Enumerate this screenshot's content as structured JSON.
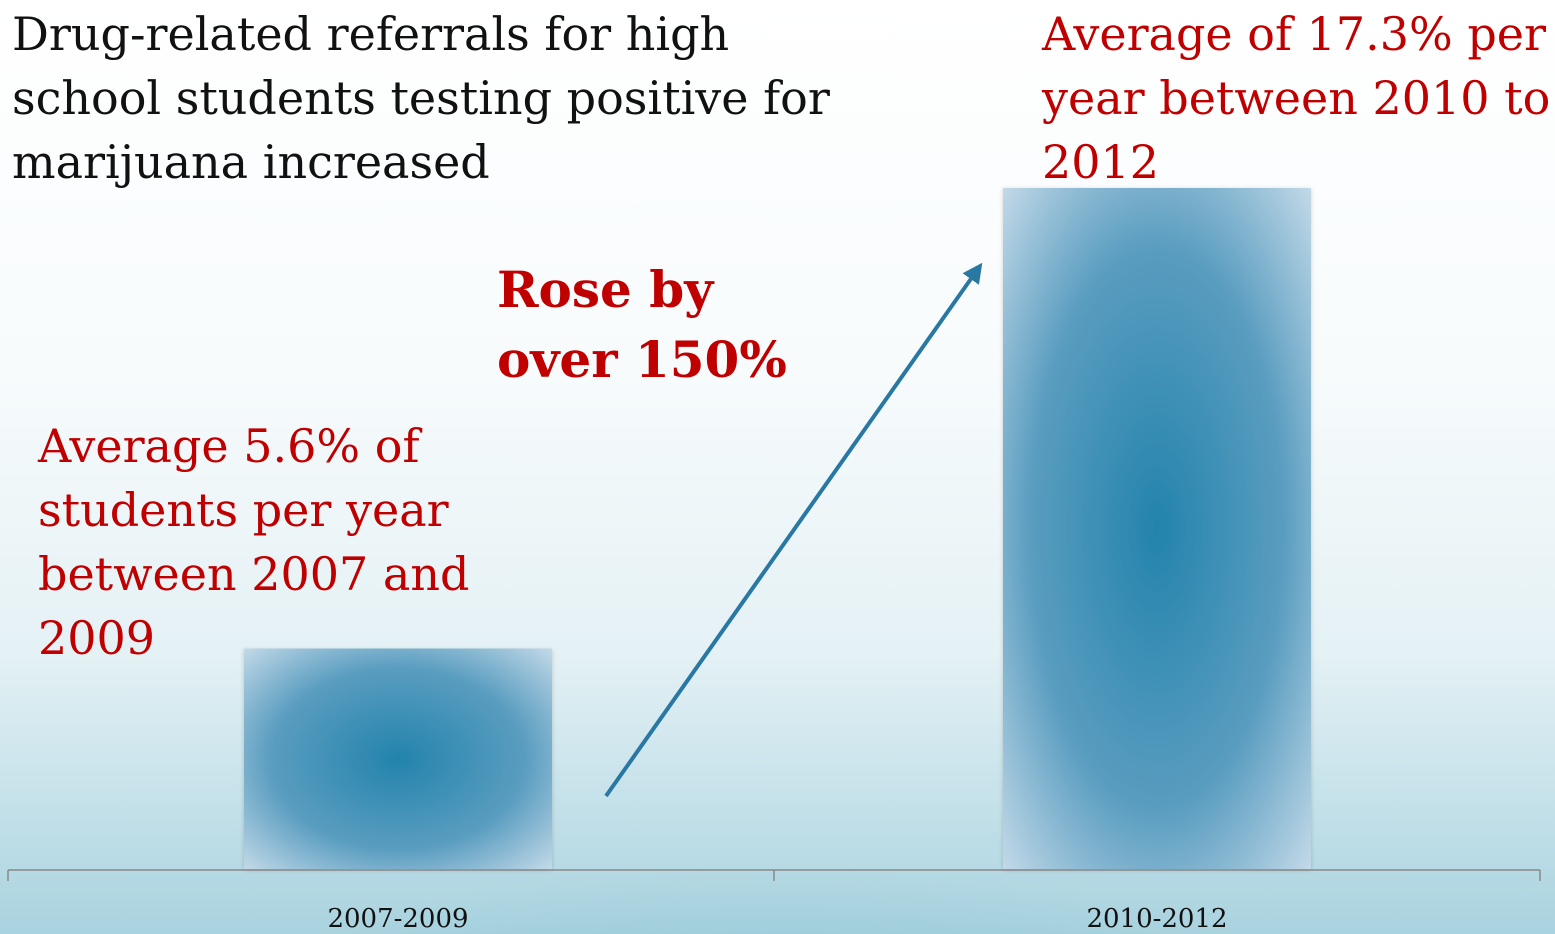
{
  "colors": {
    "bar": "#2a85ad",
    "arrow": "#2878a3",
    "axis": "#888888",
    "annotation": "#c00000",
    "title": "#111111"
  },
  "chart_data": {
    "type": "bar",
    "title": "Drug-related referrals for high school students testing positive for marijuana increased",
    "categories": [
      "2007-2009",
      "2010-2012"
    ],
    "values": [
      5.6,
      17.3
    ],
    "unit": "%",
    "xlabel": "",
    "ylabel": "",
    "ylim": [
      0,
      17.3
    ],
    "grid": false,
    "legend": "none",
    "annotations": {
      "left": "Average 5.6% of students per year between 2007 and 2009",
      "right": "Average of 17.3% per year between 2010 to 2012",
      "middle": "Rose by over 150%"
    }
  }
}
